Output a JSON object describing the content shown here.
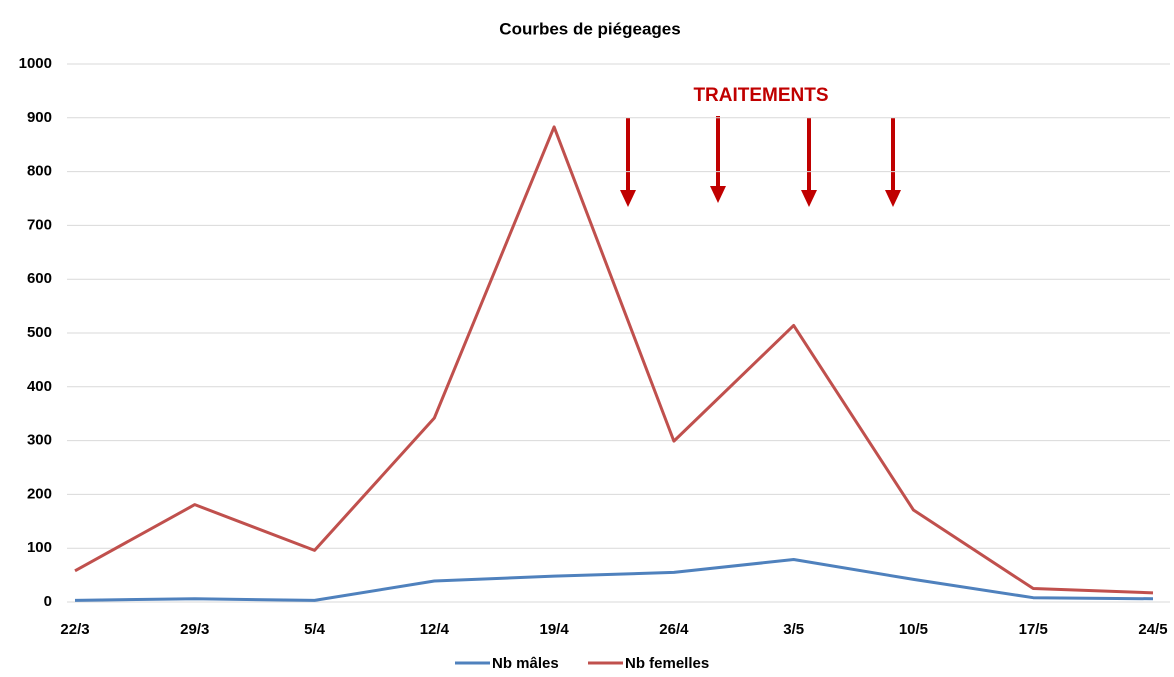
{
  "chart_data": {
    "type": "line",
    "title": "Courbes de piégeages",
    "annotation": "TRAITEMENTS",
    "categories": [
      "22/3",
      "29/3",
      "5/4",
      "12/4",
      "19/4",
      "26/4",
      "3/5",
      "10/5",
      "17/5",
      "24/5"
    ],
    "series": [
      {
        "name": "Nb mâles",
        "color": "#4f81bd",
        "values": [
          3,
          6,
          3,
          39,
          48,
          55,
          79,
          42,
          8,
          6
        ]
      },
      {
        "name": "Nb femelles",
        "color": "#c0504d",
        "values": [
          58,
          181,
          96,
          342,
          883,
          299,
          514,
          171,
          25,
          17
        ]
      }
    ],
    "ylim": [
      0,
      1000
    ],
    "yticks": [
      0,
      100,
      200,
      300,
      400,
      500,
      600,
      700,
      800,
      900,
      1000
    ],
    "grid": true,
    "legend": "bottom"
  }
}
